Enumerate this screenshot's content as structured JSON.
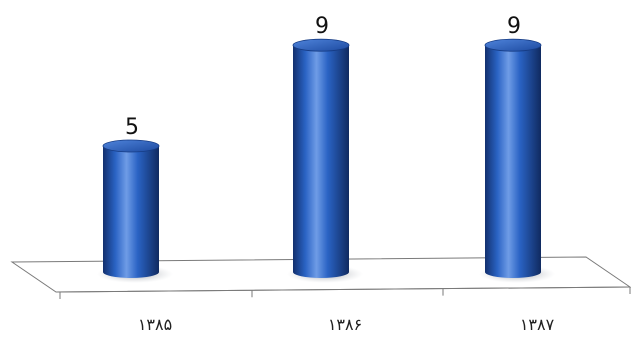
{
  "chart_data": {
    "type": "bar",
    "style": "3d-cylinder",
    "categories": [
      "۱۳۸۵",
      "۱۳۸۶",
      "۱۳۸۷"
    ],
    "values": [
      5,
      9,
      9
    ],
    "data_labels": [
      "5",
      "9",
      "9"
    ],
    "ylim": [
      0,
      10
    ],
    "grid": false,
    "legend": "none",
    "colors": {
      "bar": "#2257b8",
      "bar_dark": "#12306e",
      "bar_light": "#6f9ce6",
      "floor_stroke": "#777777",
      "shadow": "#9aa0a8"
    }
  }
}
